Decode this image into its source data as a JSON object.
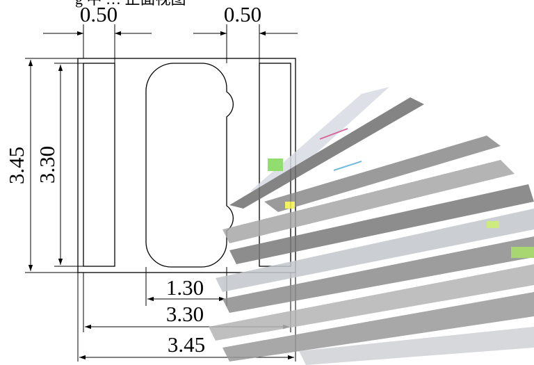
{
  "top_caption": "g 中 … 正面视图",
  "dimensions": {
    "top_left_width": "0.50",
    "top_right_width": "0.50",
    "outer_height": "3.45",
    "inner_height": "3.30",
    "pad_width": "1.30",
    "inner_width": "3.30",
    "outer_width": "3.45"
  },
  "colors": {
    "line": "#000000",
    "artifact_gray": "#7f7f7f",
    "artifact_light": "#c9ccd3",
    "artifact_yellow": "#f2f04a",
    "artifact_green": "#7ed957"
  }
}
